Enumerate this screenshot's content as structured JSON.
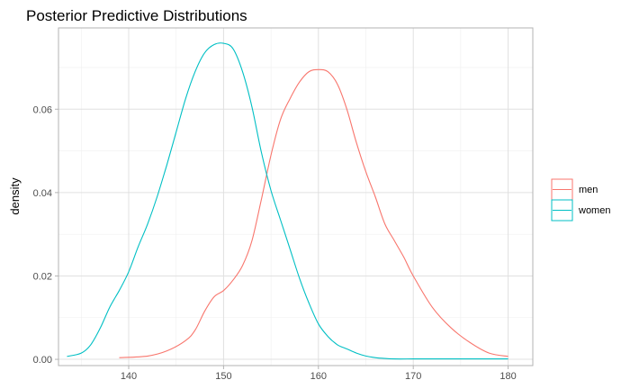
{
  "chart_data": {
    "type": "line",
    "title": "Posterior Predictive Distributions",
    "xlabel": "",
    "ylabel": "density",
    "xlim": [
      132.6,
      182.6
    ],
    "ylim": [
      -0.0015,
      0.0795
    ],
    "x_ticks": [
      140,
      150,
      160,
      170,
      180
    ],
    "x_tick_labels": [
      "140",
      "150",
      "160",
      "170",
      "180"
    ],
    "y_ticks": [
      0.0,
      0.02,
      0.04,
      0.06
    ],
    "y_tick_labels": [
      "0.00",
      "0.02",
      "0.04",
      "0.06"
    ],
    "grid": true,
    "legend_position": "right",
    "series": [
      {
        "name": "men",
        "color": "#F8766D",
        "x": [
          139,
          142,
          144,
          146,
          147,
          148,
          149,
          150,
          151,
          152,
          153,
          154,
          155,
          156,
          157,
          158,
          159,
          160,
          161,
          162,
          163,
          164,
          165,
          166,
          167,
          168,
          169,
          170,
          172,
          174,
          176,
          178,
          180
        ],
        "y": [
          0.0004,
          0.0008,
          0.002,
          0.0045,
          0.007,
          0.0115,
          0.015,
          0.0165,
          0.019,
          0.0225,
          0.0285,
          0.0385,
          0.049,
          0.0575,
          0.0625,
          0.0665,
          0.069,
          0.0695,
          0.069,
          0.066,
          0.06,
          0.052,
          0.045,
          0.039,
          0.0325,
          0.0285,
          0.0245,
          0.02,
          0.0125,
          0.0075,
          0.004,
          0.0015,
          0.0007
        ]
      },
      {
        "name": "women",
        "color": "#00BFC4",
        "x": [
          133.5,
          135,
          136,
          137,
          138,
          139,
          140,
          141,
          142,
          143,
          144,
          145,
          146,
          147,
          148,
          149,
          150,
          151,
          152,
          153,
          154,
          155,
          156,
          157,
          158,
          159,
          160,
          161,
          162,
          163,
          164,
          165,
          166,
          167,
          168,
          170,
          172,
          175,
          178,
          180
        ],
        "y": [
          0.0007,
          0.0015,
          0.0035,
          0.0075,
          0.0125,
          0.0165,
          0.021,
          0.027,
          0.0325,
          0.039,
          0.0465,
          0.0545,
          0.0625,
          0.069,
          0.0735,
          0.0755,
          0.0758,
          0.0745,
          0.069,
          0.0605,
          0.0495,
          0.0405,
          0.0335,
          0.0265,
          0.0195,
          0.0135,
          0.0085,
          0.0055,
          0.0035,
          0.0025,
          0.0015,
          0.0008,
          0.0004,
          0.0002,
          0.0001,
          0.0001,
          0.0001,
          0.0001,
          0.0001,
          0.0001
        ]
      }
    ]
  }
}
